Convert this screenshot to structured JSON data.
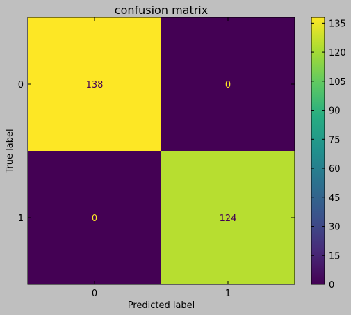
{
  "chart_data": {
    "type": "heatmap",
    "title": "confusion matrix",
    "xlabel": "Predicted label",
    "ylabel": "True label",
    "x_categories": [
      "0",
      "1"
    ],
    "y_categories": [
      "0",
      "1"
    ],
    "values": [
      [
        138,
        0
      ],
      [
        0,
        124
      ]
    ],
    "colorbar": {
      "min": 0,
      "max": 138,
      "ticks": [
        0,
        15,
        30,
        45,
        60,
        75,
        90,
        105,
        120,
        135
      ],
      "colormap": "viridis"
    },
    "grid": false
  }
}
